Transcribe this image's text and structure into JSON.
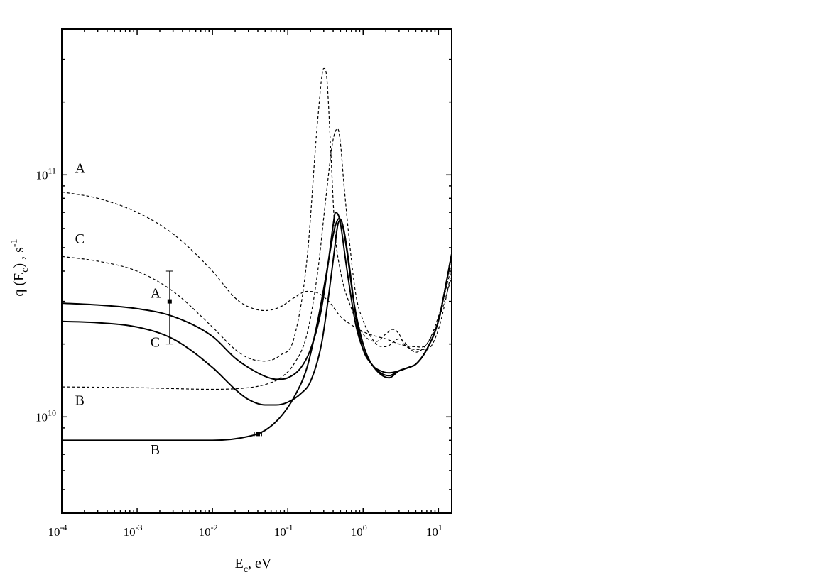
{
  "chart_data": {
    "type": "line",
    "title": "",
    "xlabel": {
      "main": "E",
      "sub": "c",
      "rest": ", eV"
    },
    "ylabel": {
      "pre": "q (E",
      "sub": "c",
      "mid": ") , s",
      "sup": "-1"
    },
    "xscale": "log",
    "yscale": "log",
    "xlim": [
      0.0001,
      15
    ],
    "ylim": [
      4000000000,
      400000000000
    ],
    "grid": false,
    "legend": "none",
    "x_ticks": [
      {
        "base": "10",
        "exp": "-4",
        "value": 0.0001
      },
      {
        "base": "10",
        "exp": "-3",
        "value": 0.001
      },
      {
        "base": "10",
        "exp": "-2",
        "value": 0.01
      },
      {
        "base": "10",
        "exp": "-1",
        "value": 0.1
      },
      {
        "base": "10",
        "exp": "0",
        "value": 1
      },
      {
        "base": "10",
        "exp": "1",
        "value": 10
      }
    ],
    "y_ticks": [
      {
        "base": "10",
        "exp": "10",
        "value": 10000000000
      },
      {
        "base": "10",
        "exp": "11",
        "value": 100000000000
      }
    ],
    "series": [
      {
        "name": "A",
        "style": "dashed",
        "x": [
          0.0001,
          0.0003,
          0.001,
          0.003,
          0.01,
          0.02,
          0.03,
          0.05,
          0.08,
          0.12,
          0.18,
          0.25,
          0.35,
          0.5,
          0.7,
          1,
          1.5,
          2,
          3,
          5,
          7,
          10,
          15
        ],
        "y": [
          85000000000,
          80000000000,
          70000000000,
          57000000000,
          40000000000,
          31000000000,
          28500000000,
          27500000000,
          28500000000,
          31000000000,
          33000000000,
          32500000000,
          30000000000,
          26000000000,
          24000000000,
          22500000000,
          21500000000,
          21000000000,
          20000000000,
          19500000000,
          20000000000,
          26000000000,
          42000000000
        ]
      },
      {
        "name": "C",
        "style": "dashed",
        "x": [
          0.0001,
          0.0003,
          0.001,
          0.003,
          0.01,
          0.02,
          0.03,
          0.05,
          0.08,
          0.12,
          0.18,
          0.25,
          0.3,
          0.33,
          0.37,
          0.42,
          0.5,
          0.7,
          1,
          1.5,
          2,
          2.5,
          3,
          3.5,
          5,
          7,
          10,
          15
        ],
        "y": [
          46000000000,
          44000000000,
          40000000000,
          33000000000,
          23500000000,
          19000000000,
          17500000000,
          17000000000,
          18000000000,
          21000000000,
          45000000000,
          170000000000,
          275000000000,
          250000000000,
          130000000000,
          60000000000,
          40000000000,
          28000000000,
          22000000000,
          20500000000,
          22000000000,
          23000000000,
          22000000000,
          20000000000,
          19000000000,
          19000000000,
          23000000000,
          40000000000
        ]
      },
      {
        "name": "B",
        "style": "dashed",
        "x": [
          0.0001,
          0.001,
          0.01,
          0.03,
          0.05,
          0.08,
          0.12,
          0.18,
          0.25,
          0.32,
          0.4,
          0.46,
          0.5,
          0.55,
          0.65,
          0.8,
          1,
          1.5,
          2,
          3,
          5,
          7,
          10,
          15
        ],
        "y": [
          13300000000,
          13200000000,
          13000000000,
          13200000000,
          13600000000,
          14500000000,
          16500000000,
          22000000000,
          40000000000,
          80000000000,
          140000000000,
          155000000000,
          135000000000,
          95000000000,
          55000000000,
          32000000000,
          25000000000,
          20000000000,
          19500000000,
          21000000000,
          18500000000,
          20000000000,
          25000000000,
          38000000000
        ]
      },
      {
        "name": "A",
        "style": "solid",
        "x": [
          0.0001,
          0.0003,
          0.001,
          0.003,
          0.01,
          0.02,
          0.03,
          0.05,
          0.07,
          0.1,
          0.15,
          0.2,
          0.28,
          0.35,
          0.4,
          0.43,
          0.47,
          0.5,
          0.6,
          0.8,
          1,
          1.3,
          1.7,
          2.2,
          3,
          4,
          5,
          7,
          10,
          15
        ],
        "y": [
          29500000000,
          29000000000,
          28000000000,
          26000000000,
          21500000000,
          17500000000,
          16000000000,
          14700000000,
          14300000000,
          14500000000,
          16000000000,
          19000000000,
          28000000000,
          45000000000,
          62000000000,
          70000000000,
          68000000000,
          63000000000,
          42000000000,
          24000000000,
          19000000000,
          16500000000,
          15000000000,
          14500000000,
          15500000000,
          16000000000,
          16500000000,
          19000000000,
          25000000000,
          47000000000
        ]
      },
      {
        "name": "C",
        "style": "solid",
        "x": [
          0.0001,
          0.0003,
          0.001,
          0.003,
          0.01,
          0.02,
          0.03,
          0.05,
          0.07,
          0.1,
          0.15,
          0.2,
          0.28,
          0.35,
          0.42,
          0.46,
          0.5,
          0.55,
          0.65,
          0.8,
          1,
          1.3,
          1.7,
          2.2,
          3,
          4,
          5,
          7,
          10,
          15
        ],
        "y": [
          24800000000,
          24500000000,
          23500000000,
          21000000000,
          16000000000,
          13000000000,
          11800000000,
          11200000000,
          11200000000,
          11500000000,
          12500000000,
          14000000000,
          20000000000,
          32000000000,
          50000000000,
          62000000000,
          65000000000,
          60000000000,
          43000000000,
          26000000000,
          19000000000,
          16500000000,
          15200000000,
          14800000000,
          15500000000,
          16000000000,
          16500000000,
          19000000000,
          25000000000,
          47000000000
        ]
      },
      {
        "name": "B",
        "style": "solid",
        "x": [
          0.0001,
          0.001,
          0.01,
          0.03,
          0.05,
          0.08,
          0.12,
          0.18,
          0.25,
          0.32,
          0.38,
          0.43,
          0.48,
          0.52,
          0.6,
          0.75,
          1,
          1.3,
          1.7,
          2.2,
          3,
          4,
          5,
          7,
          10,
          15
        ],
        "y": [
          8000000000,
          8000000000,
          8000000000,
          8300000000,
          8800000000,
          10000000000,
          12000000000,
          16000000000,
          25000000000,
          38000000000,
          52000000000,
          62000000000,
          66000000000,
          64000000000,
          50000000000,
          30000000000,
          20000000000,
          16500000000,
          15500000000,
          15200000000,
          15500000000,
          16000000000,
          16500000000,
          19000000000,
          25000000000,
          47000000000
        ]
      }
    ],
    "curve_labels": [
      {
        "text": "A",
        "x": 0.00015,
        "y": 102000000000
      },
      {
        "text": "C",
        "x": 0.00015,
        "y": 52000000000
      },
      {
        "text": "A",
        "x": 0.0015,
        "y": 31000000000
      },
      {
        "text": "C",
        "x": 0.0015,
        "y": 19500000000
      },
      {
        "text": "B",
        "x": 0.00015,
        "y": 11200000000
      },
      {
        "text": "B",
        "x": 0.0015,
        "y": 7000000000
      }
    ],
    "data_points": [
      {
        "x": 0.0027,
        "y": 30000000000,
        "yerr": [
          20000000000,
          40000000000
        ]
      },
      {
        "x": 0.04,
        "y": 8500000000,
        "xerr": [
          0.036,
          0.045
        ]
      }
    ]
  }
}
